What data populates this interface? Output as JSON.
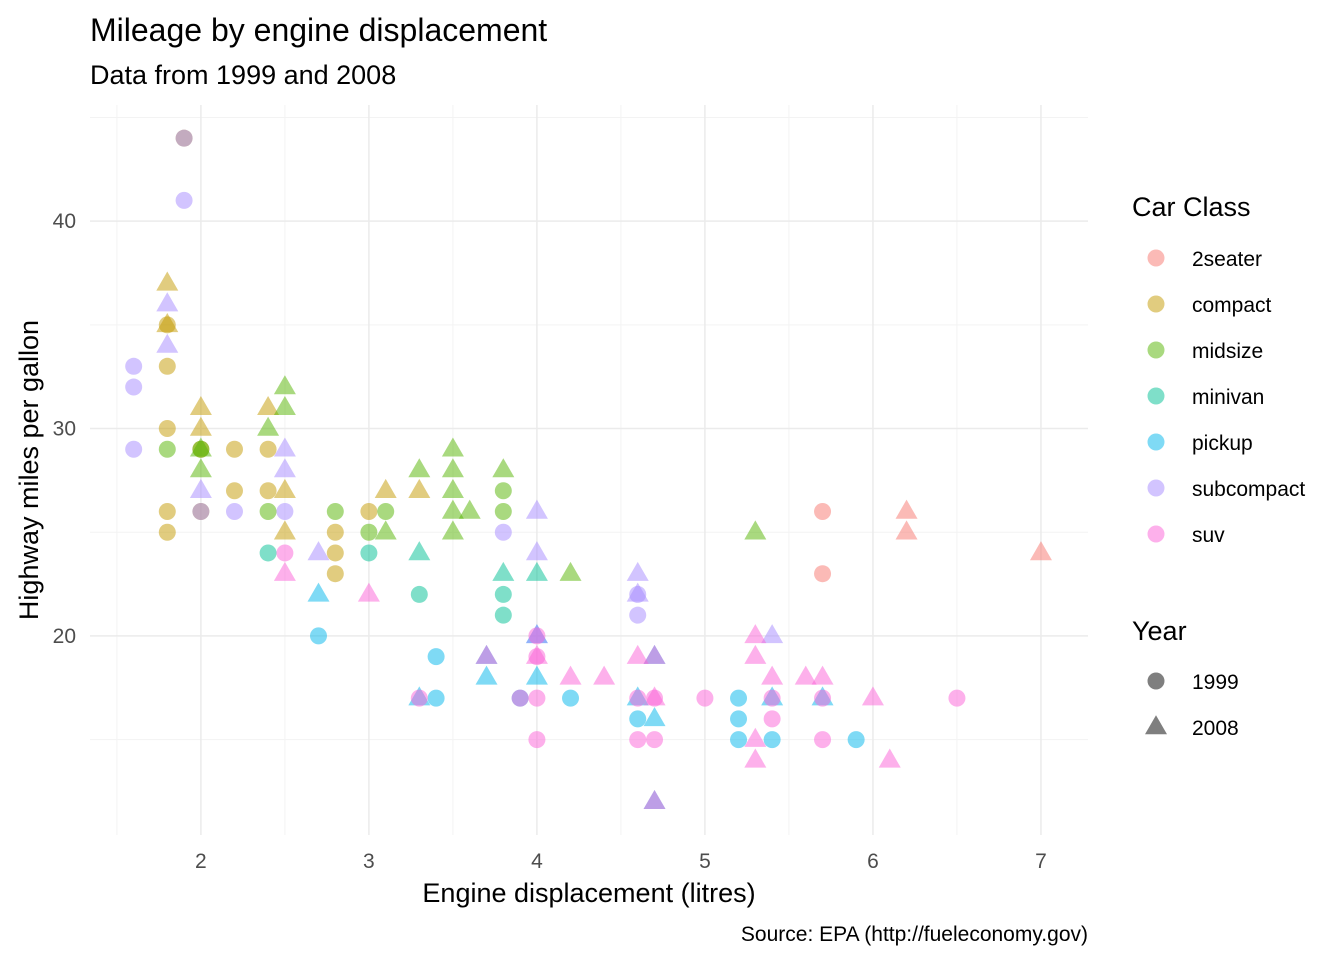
{
  "chart_data": {
    "type": "scatter",
    "title": "Mileage by engine displacement",
    "subtitle": "Data from 1999 and 2008",
    "xlabel": "Engine displacement (litres)",
    "ylabel": "Highway miles per gallon",
    "caption": "Source: EPA (http://fueleconomy.gov)",
    "xlim": [
      1.34,
      7.28
    ],
    "ylim": [
      10.4,
      45.6
    ],
    "xticks": [
      "2",
      "3",
      "4",
      "5",
      "6",
      "7"
    ],
    "yticks": [
      "20",
      "30",
      "40"
    ],
    "grid": true,
    "legend_position": "right",
    "color_legend": {
      "title": "Car Class",
      "items": [
        {
          "label": "2seater",
          "color": "#F8766D"
        },
        {
          "label": "compact",
          "color": "#C49A00"
        },
        {
          "label": "midsize",
          "color": "#53B400"
        },
        {
          "label": "minivan",
          "color": "#00C094"
        },
        {
          "label": "pickup",
          "color": "#00B6EB"
        },
        {
          "label": "subcompact",
          "color": "#A58AFF"
        },
        {
          "label": "suv",
          "color": "#FB61D7"
        }
      ]
    },
    "shape_legend": {
      "title": "Year",
      "items": [
        {
          "label": "1999",
          "shape": "circle"
        },
        {
          "label": "2008",
          "shape": "triangle"
        }
      ]
    },
    "series": [
      {
        "name": "2seater",
        "points": [
          [
            5.7,
            26,
            1999
          ],
          [
            5.7,
            23,
            1999
          ],
          [
            6.2,
            26,
            2008
          ],
          [
            6.2,
            25,
            2008
          ],
          [
            7.0,
            24,
            2008
          ]
        ]
      },
      {
        "name": "compact",
        "points": [
          [
            1.9,
            44,
            1999
          ],
          [
            1.8,
            33,
            1999
          ],
          [
            1.8,
            30,
            1999
          ],
          [
            1.8,
            26,
            1999
          ],
          [
            1.8,
            25,
            1999
          ],
          [
            1.8,
            35,
            1999
          ],
          [
            2.0,
            26,
            1999
          ],
          [
            2.0,
            29,
            1999
          ],
          [
            2.2,
            29,
            1999
          ],
          [
            2.2,
            27,
            1999
          ],
          [
            2.4,
            27,
            1999
          ],
          [
            2.4,
            29,
            1999
          ],
          [
            2.8,
            25,
            1999
          ],
          [
            2.8,
            24,
            1999
          ],
          [
            2.8,
            23,
            1999
          ],
          [
            3.0,
            26,
            1999
          ],
          [
            1.8,
            37,
            2008
          ],
          [
            1.8,
            35,
            2008
          ],
          [
            2.0,
            31,
            2008
          ],
          [
            2.0,
            30,
            2008
          ],
          [
            2.4,
            31,
            2008
          ],
          [
            2.5,
            27,
            2008
          ],
          [
            2.5,
            25,
            2008
          ],
          [
            3.1,
            27,
            2008
          ],
          [
            3.3,
            27,
            2008
          ]
        ]
      },
      {
        "name": "midsize",
        "points": [
          [
            1.8,
            29,
            1999
          ],
          [
            2.0,
            29,
            1999
          ],
          [
            2.4,
            26,
            1999
          ],
          [
            2.8,
            26,
            1999
          ],
          [
            3.0,
            25,
            1999
          ],
          [
            3.1,
            26,
            1999
          ],
          [
            3.8,
            27,
            1999
          ],
          [
            3.8,
            26,
            1999
          ],
          [
            2.0,
            29,
            2008
          ],
          [
            2.0,
            28,
            2008
          ],
          [
            2.4,
            30,
            2008
          ],
          [
            2.5,
            32,
            2008
          ],
          [
            2.5,
            31,
            2008
          ],
          [
            3.1,
            25,
            2008
          ],
          [
            3.3,
            28,
            2008
          ],
          [
            3.5,
            29,
            2008
          ],
          [
            3.5,
            28,
            2008
          ],
          [
            3.5,
            27,
            2008
          ],
          [
            3.5,
            26,
            2008
          ],
          [
            3.5,
            25,
            2008
          ],
          [
            3.6,
            26,
            2008
          ],
          [
            3.8,
            28,
            2008
          ],
          [
            4.2,
            23,
            2008
          ],
          [
            5.3,
            25,
            2008
          ]
        ]
      },
      {
        "name": "minivan",
        "points": [
          [
            2.4,
            24,
            1999
          ],
          [
            3.0,
            24,
            1999
          ],
          [
            3.3,
            22,
            1999
          ],
          [
            3.8,
            22,
            1999
          ],
          [
            3.8,
            21,
            1999
          ],
          [
            3.3,
            24,
            2008
          ],
          [
            3.8,
            23,
            2008
          ],
          [
            4.0,
            23,
            2008
          ]
        ]
      },
      {
        "name": "pickup",
        "points": [
          [
            2.7,
            20,
            1999
          ],
          [
            3.4,
            19,
            1999
          ],
          [
            3.4,
            17,
            1999
          ],
          [
            3.9,
            17,
            1999
          ],
          [
            4.2,
            17,
            1999
          ],
          [
            4.6,
            16,
            1999
          ],
          [
            5.2,
            17,
            1999
          ],
          [
            5.2,
            16,
            1999
          ],
          [
            5.2,
            15,
            1999
          ],
          [
            5.4,
            15,
            1999
          ],
          [
            5.9,
            15,
            1999
          ],
          [
            2.7,
            22,
            2008
          ],
          [
            3.3,
            17,
            2008
          ],
          [
            3.7,
            19,
            2008
          ],
          [
            3.7,
            18,
            2008
          ],
          [
            4.0,
            20,
            2008
          ],
          [
            4.0,
            18,
            2008
          ],
          [
            4.6,
            17,
            2008
          ],
          [
            4.7,
            19,
            2008
          ],
          [
            4.7,
            16,
            2008
          ],
          [
            4.7,
            12,
            2008
          ],
          [
            5.4,
            17,
            2008
          ],
          [
            5.7,
            17,
            2008
          ]
        ]
      },
      {
        "name": "subcompact",
        "points": [
          [
            1.9,
            44,
            1999
          ],
          [
            1.9,
            41,
            1999
          ],
          [
            1.6,
            33,
            1999
          ],
          [
            1.6,
            32,
            1999
          ],
          [
            1.6,
            29,
            1999
          ],
          [
            2.0,
            26,
            1999
          ],
          [
            2.2,
            26,
            1999
          ],
          [
            2.5,
            26,
            1999
          ],
          [
            3.8,
            25,
            1999
          ],
          [
            4.6,
            22,
            1999
          ],
          [
            4.6,
            21,
            1999
          ],
          [
            1.8,
            36,
            2008
          ],
          [
            1.8,
            34,
            2008
          ],
          [
            2.0,
            27,
            2008
          ],
          [
            2.5,
            29,
            2008
          ],
          [
            2.5,
            28,
            2008
          ],
          [
            2.7,
            24,
            2008
          ],
          [
            4.0,
            26,
            2008
          ],
          [
            4.0,
            24,
            2008
          ],
          [
            4.0,
            20,
            2008
          ],
          [
            4.6,
            23,
            2008
          ],
          [
            4.6,
            22,
            2008
          ],
          [
            5.4,
            20,
            2008
          ]
        ]
      },
      {
        "name": "suv",
        "points": [
          [
            2.5,
            24,
            1999
          ],
          [
            3.3,
            17,
            1999
          ],
          [
            3.9,
            17,
            1999
          ],
          [
            4.0,
            20,
            1999
          ],
          [
            4.0,
            19,
            1999
          ],
          [
            4.0,
            17,
            1999
          ],
          [
            4.0,
            15,
            1999
          ],
          [
            4.6,
            17,
            1999
          ],
          [
            4.6,
            15,
            1999
          ],
          [
            4.7,
            17,
            1999
          ],
          [
            4.7,
            15,
            1999
          ],
          [
            5.0,
            17,
            1999
          ],
          [
            5.4,
            17,
            1999
          ],
          [
            5.4,
            16,
            1999
          ],
          [
            5.7,
            17,
            1999
          ],
          [
            5.7,
            15,
            1999
          ],
          [
            6.5,
            17,
            1999
          ],
          [
            2.5,
            23,
            2008
          ],
          [
            3.0,
            22,
            2008
          ],
          [
            3.7,
            19,
            2008
          ],
          [
            4.0,
            19,
            2008
          ],
          [
            4.2,
            18,
            2008
          ],
          [
            4.4,
            18,
            2008
          ],
          [
            4.6,
            19,
            2008
          ],
          [
            4.7,
            19,
            2008
          ],
          [
            4.7,
            17,
            2008
          ],
          [
            4.7,
            12,
            2008
          ],
          [
            5.3,
            20,
            2008
          ],
          [
            5.3,
            19,
            2008
          ],
          [
            5.3,
            15,
            2008
          ],
          [
            5.3,
            14,
            2008
          ],
          [
            5.4,
            18,
            2008
          ],
          [
            5.6,
            18,
            2008
          ],
          [
            5.7,
            18,
            2008
          ],
          [
            6.0,
            17,
            2008
          ],
          [
            6.1,
            14,
            2008
          ]
        ]
      }
    ]
  }
}
